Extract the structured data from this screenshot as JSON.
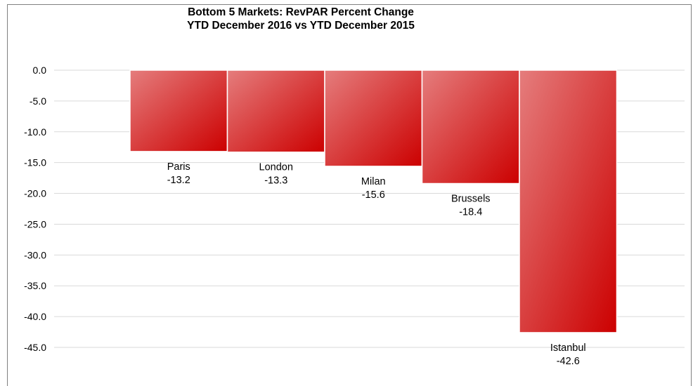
{
  "chart_data": {
    "type": "bar",
    "title": "Bottom 5 Markets: RevPAR Percent Change",
    "subtitle": "YTD December 2016 vs YTD December 2015",
    "categories": [
      "Paris",
      "London",
      "Milan",
      "Brussels",
      "Istanbul"
    ],
    "values": [
      -13.2,
      -13.3,
      -15.6,
      -18.4,
      -42.6
    ],
    "value_labels": [
      "-13.2",
      "-13.3",
      "-15.6",
      "-18.4",
      "-42.6"
    ],
    "ylim": [
      -45,
      0
    ],
    "yticks": [
      "0.0",
      "-5.0",
      "-10.0",
      "-15.0",
      "-20.0",
      "-25.0",
      "-30.0",
      "-35.0",
      "-40.0",
      "-45.0"
    ],
    "ytick_values": [
      0,
      -5,
      -10,
      -15,
      -20,
      -25,
      -30,
      -35,
      -40,
      -45
    ],
    "grid": true,
    "legend": "none",
    "colors": {
      "bar_light": "#e57d7d",
      "bar_dark": "#cc0000",
      "bar_edge": "#ffffff",
      "grid": "#d9d9d9",
      "axis": "#808080"
    }
  }
}
